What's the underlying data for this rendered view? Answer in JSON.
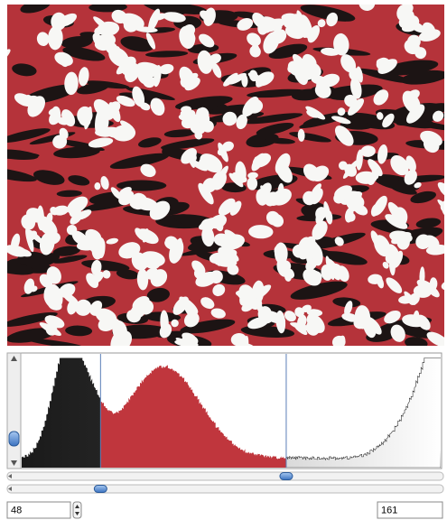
{
  "threshold": {
    "lower": 48,
    "upper": 161
  }
}
